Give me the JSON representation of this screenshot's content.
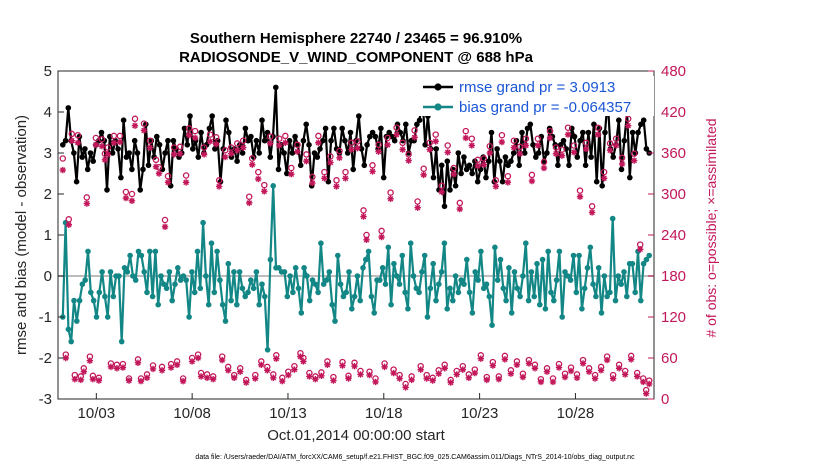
{
  "chart_data": {
    "type": "line",
    "title": "Southern Hemisphere 22740 / 23465 = 96.910%",
    "subtitle": "RADIOSONDE_V_WIND_COMPONENT @ 688 hPa",
    "xlabel": "Oct.01,2014 00:00:00 start",
    "ylabel": "rmse and bias (model - observation)",
    "ylabel_right": "# of obs: o=possible; ×=assimilated",
    "xlim": [
      1.0,
      32.1
    ],
    "ylim": [
      -3,
      5
    ],
    "ylim_right": [
      0,
      480
    ],
    "x_tick_values": [
      3,
      8,
      13,
      18,
      23,
      28
    ],
    "x_tick_labels": [
      "10/03",
      "10/08",
      "10/13",
      "10/18",
      "10/23",
      "10/28"
    ],
    "y_ticks": [
      "-3",
      "-2",
      "-1",
      "0",
      "1",
      "2",
      "3",
      "4",
      "5"
    ],
    "y_ticks_right": [
      "0",
      "60",
      "120",
      "180",
      "240",
      "300",
      "360",
      "420",
      "480"
    ],
    "zero_line": 0,
    "legend_position": "top-right",
    "series": [
      {
        "name": "rmse",
        "legend_label": "rmse grand pr = 3.0913",
        "color": "#000000",
        "axis": "left",
        "values": [
          3.2,
          3.3,
          4.1,
          3.3,
          3.0,
          2.3,
          3.4,
          2.9,
          3.1,
          2.6,
          3.0,
          2.8,
          3.2,
          3.3,
          3.5,
          3.3,
          2.1,
          3.4,
          3.0,
          3.3,
          3.1,
          2.4,
          3.8,
          2.9,
          3.0,
          2.6,
          3.3,
          3.0,
          2.1,
          2.6,
          3.7,
          2.7,
          3.3,
          2.9,
          3.4,
          3.2,
          2.6,
          3.0,
          3.3,
          2.2,
          3.3,
          3.1,
          2.9,
          3.0,
          3.6,
          3.2,
          3.9,
          3.1,
          3.3,
          2.9,
          3.5,
          3.0,
          3.2,
          3.6,
          3.9,
          3.1,
          3.3,
          2.3,
          3.1,
          3.8,
          3.5,
          2.9,
          3.1,
          2.8,
          3.2,
          3.0,
          3.6,
          3.3,
          3.4,
          2.9,
          3.3,
          3.0,
          3.8,
          3.3,
          3.5,
          2.9,
          3.4,
          4.6,
          2.6,
          3.2,
          3.0,
          2.5,
          3.3,
          3.0,
          3.4,
          3.2,
          2.7,
          3.3,
          3.7,
          3.2,
          2.2,
          3.0,
          2.9,
          3.1,
          3.3,
          3.6,
          2.3,
          3.3,
          3.6,
          3.1,
          3.0,
          3.6,
          3.3,
          3.0,
          3.5,
          2.6,
          3.3,
          3.9,
          3.1,
          2.7,
          3.2,
          3.4,
          3.5,
          3.4,
          3.1,
          3.6,
          2.4,
          3.4,
          3.5,
          3.4,
          3.3,
          3.7,
          3.5,
          3.3,
          3.7,
          3.0,
          3.3,
          3.3,
          3.7,
          3.8,
          4.4,
          3.2,
          3.9,
          3.1,
          2.4,
          3.1,
          2.1,
          2.7,
          1.7,
          2.8,
          2.1,
          2.6,
          2.2,
          3.0,
          2.5,
          2.9,
          2.6,
          2.7,
          2.5,
          2.8,
          2.3,
          2.6,
          2.9,
          2.4,
          2.8,
          3.5,
          2.3,
          3.1,
          2.8,
          2.3,
          2.9,
          2.7,
          2.8,
          3.0,
          3.3,
          2.7,
          3.5,
          3.0,
          3.6,
          3.7,
          3.2,
          2.9,
          3.0,
          3.4,
          2.8,
          3.0,
          3.6,
          3.4,
          3.2,
          2.7,
          3.2,
          3.3,
          3.1,
          2.7,
          3.6,
          3.4,
          2.9,
          3.3,
          3.5,
          2.7,
          3.5,
          2.9,
          3.7,
          2.3,
          3.6,
          2.2,
          3.5,
          4.3,
          3.1,
          2.9,
          3.2,
          3.8,
          2.6,
          3.3,
          4.0,
          2.4,
          3.5,
          3.0,
          3.5,
          3.7,
          3.8,
          3.1,
          3.0
        ]
      },
      {
        "name": "bias",
        "legend_label": "bias grand pr = -0.064357",
        "color": "#138686",
        "axis": "left",
        "values": [
          -1.0,
          1.3,
          -1.3,
          -1.6,
          -0.6,
          -1.1,
          -0.6,
          -0.2,
          -0.1,
          0.6,
          -0.4,
          -0.6,
          -1.0,
          -0.4,
          0.1,
          -0.5,
          -1.0,
          0.1,
          -0.5,
          0.0,
          0.0,
          -1.6,
          0.2,
          0.1,
          0.5,
          0.0,
          -0.1,
          0.6,
          0.5,
          0.1,
          -0.4,
          0.6,
          -0.5,
          0.6,
          -0.7,
          0.0,
          -0.2,
          -0.3,
          0.1,
          -0.6,
          -0.2,
          0.2,
          -0.1,
          0.0,
          -0.1,
          -1.0,
          0.1,
          -0.4,
          0.6,
          -0.3,
          1.3,
          0.0,
          -0.7,
          0.8,
          -0.4,
          0.6,
          -0.1,
          -0.7,
          -1.1,
          0.3,
          -0.6,
          0.1,
          -0.7,
          0.1,
          -0.3,
          -0.5,
          -0.4,
          -0.1,
          -0.3,
          0.1,
          -0.7,
          -0.2,
          -0.5,
          -1.8,
          0.4,
          2.2,
          0.2,
          0.2,
          0.1,
          0.1,
          -0.5,
          0.0,
          -0.4,
          0.2,
          -0.3,
          -0.9,
          0.2,
          0.0,
          -0.6,
          -0.1,
          -0.2,
          -0.4,
          0.8,
          -0.2,
          -0.1,
          0.1,
          -0.7,
          -1.1,
          0.5,
          -0.2,
          -0.5,
          -0.4,
          0.1,
          -0.8,
          -0.5,
          0.0,
          -0.6,
          0.2,
          0.4,
          0.6,
          -0.5,
          -0.9,
          -0.1,
          -0.1,
          0.2,
          -0.2,
          0.7,
          -0.7,
          0.3,
          0.0,
          -0.2,
          0.5,
          -0.4,
          -0.8,
          0.8,
          0.0,
          -0.3,
          -0.4,
          0.1,
          0.5,
          -1.0,
          -0.3,
          0.3,
          -0.6,
          -0.2,
          0.1,
          0.8,
          -0.8,
          -0.3,
          -0.6,
          0.0,
          -0.4,
          -0.1,
          -0.2,
          0.4,
          -0.4,
          -0.9,
          0.1,
          -0.1,
          0.6,
          -0.3,
          -0.2,
          -0.5,
          -1.2,
          0.7,
          -0.1,
          0.4,
          -0.3,
          -0.6,
          0.2,
          -0.9,
          0.1,
          -0.3,
          -0.5,
          0.0,
          0.8,
          -0.6,
          0.1,
          -0.5,
          0.3,
          -0.7,
          0.4,
          -0.8,
          0.6,
          -0.4,
          -0.6,
          -0.1,
          0.6,
          -1.0,
          0.1,
          0.0,
          -0.1,
          0.5,
          -0.4,
          0.5,
          -0.8,
          -0.3,
          0.2,
          0.7,
          -0.2,
          -0.5,
          0.2,
          -0.9,
          0.0,
          -0.5,
          -0.4,
          1.4,
          -0.6,
          0.0,
          -0.2,
          0.1,
          -0.5,
          0.3,
          0.3,
          -0.4,
          0.6,
          -0.6,
          0.3,
          0.4,
          0.5
        ]
      },
      {
        "name": "obs_possible",
        "marker": "o",
        "color": "#c2185b",
        "axis": "right",
        "values": [
          352,
          65,
          263,
          388,
          35,
          386,
          33,
          45,
          295,
          62,
          34,
          382,
          31,
          380,
          359,
          368,
          52,
          385,
          50,
          385,
          51,
          303,
          30,
          300,
          410,
          58,
          30,
          403,
          36,
          378,
          49,
          350,
          339,
          47,
          262,
          326,
          51,
          368,
          55,
          369,
          30,
          327,
          396,
          60,
          392,
          65,
          38,
          368,
          36,
          387,
          33,
          383,
          320,
          62,
          364,
          47,
          368,
          35,
          374,
          45,
          378,
          28,
          296,
          352,
          35,
          332,
          55,
          313,
          47,
          384,
          36,
          64,
          381,
          31,
          385,
          40,
          338,
          48,
          372,
          67,
          60,
          358,
          38,
          325,
          33,
          385,
          39,
          332,
          55,
          355,
          32,
          320,
          363,
          54,
          332,
          34,
          375,
          53,
          377,
          41,
          276,
          240,
          40,
          342,
          30,
          372,
          246,
          52,
          382,
          302,
          43,
          397,
          35,
          375,
          22,
          358,
          33,
          393,
          289,
          48,
          337,
          35,
          375,
          31,
          387,
          42,
          312,
          50,
          371,
          28,
          338,
          41,
          287,
          48,
          392,
          36,
          381,
          43,
          350,
          64,
          352,
          32,
          370,
          54,
          320,
          33,
          386,
          63,
          326,
          42,
          378,
          55,
          369,
          37,
          381,
          57,
          328,
          50,
          381,
          29,
          347,
          45,
          392,
          30,
          368,
          51,
          365,
          37,
          397,
          46,
          371,
          36,
          305,
          57,
          375,
          45,
          282,
          35,
          397,
          47,
          332,
          62,
          374,
          35,
          381,
          50,
          353,
          41,
          410,
          63,
          359,
          38,
          226,
          30,
          13,
          27
        ]
      },
      {
        "name": "obs_assimilated",
        "marker": "x",
        "color": "#c2185b",
        "axis": "right",
        "values": [
          335,
          60,
          255,
          378,
          29,
          375,
          28,
          40,
          286,
          56,
          29,
          372,
          27,
          370,
          350,
          358,
          47,
          375,
          45,
          376,
          46,
          294,
          27,
          290,
          400,
          53,
          26,
          393,
          31,
          368,
          44,
          340,
          330,
          42,
          252,
          317,
          46,
          358,
          50,
          359,
          26,
          317,
          386,
          55,
          382,
          60,
          33,
          358,
          31,
          377,
          29,
          373,
          311,
          57,
          354,
          42,
          359,
          31,
          364,
          40,
          368,
          24,
          287,
          343,
          30,
          322,
          50,
          304,
          42,
          374,
          31,
          59,
          371,
          26,
          375,
          35,
          329,
          43,
          362,
          62,
          55,
          348,
          33,
          316,
          29,
          375,
          34,
          323,
          50,
          346,
          27,
          311,
          353,
          49,
          323,
          30,
          365,
          48,
          367,
          36,
          267,
          233,
          35,
          333,
          25,
          362,
          237,
          47,
          372,
          293,
          38,
          387,
          30,
          365,
          17,
          349,
          28,
          383,
          280,
          43,
          328,
          30,
          365,
          27,
          377,
          37,
          303,
          45,
          361,
          24,
          329,
          36,
          278,
          43,
          382,
          31,
          371,
          38,
          341,
          59,
          343,
          28,
          360,
          49,
          311,
          29,
          376,
          58,
          317,
          37,
          368,
          50,
          359,
          32,
          371,
          52,
          319,
          45,
          371,
          25,
          338,
          40,
          382,
          25,
          359,
          46,
          356,
          32,
          387,
          41,
          361,
          31,
          296,
          52,
          366,
          40,
          273,
          30,
          387,
          42,
          323,
          57,
          364,
          30,
          371,
          45,
          344,
          36,
          400,
          58,
          349,
          33,
          219,
          25,
          8,
          22
        ]
      }
    ],
    "footnote": "data file: /Users/raeder/DAI/ATM_forcXX/CAM6_setup/f.e21.FHIST_BGC.f09_025.CAM6assim.011/Diags_NTrS_2014-10/obs_diag_output.nc"
  }
}
